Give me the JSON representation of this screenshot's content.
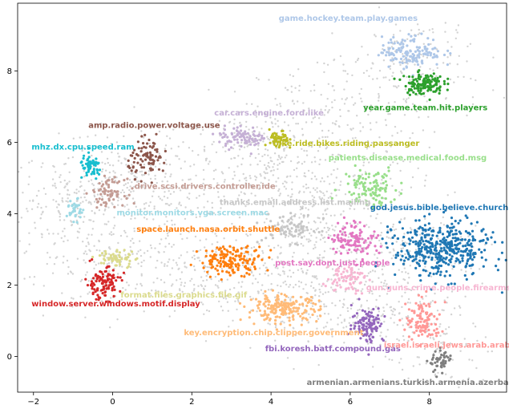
{
  "chart_data": {
    "type": "scatter",
    "title": "",
    "xlabel": "",
    "ylabel": "",
    "xlim": [
      -2.4,
      9.95
    ],
    "ylim": [
      -1.0,
      9.9
    ],
    "x_ticks": [
      -2,
      0,
      2,
      4,
      6,
      8
    ],
    "y_ticks": [
      0,
      2,
      4,
      6,
      8
    ],
    "grid": false,
    "background_color": "#d3d3d3",
    "clusters": [
      {
        "label": "game.hockey.team.play.games",
        "color": "#aec7e8",
        "center": [
          7.55,
          8.55
        ],
        "spread": [
          0.38,
          0.22
        ],
        "n": 140,
        "label_pos": [
          5.95,
          9.4
        ],
        "label_anchor": "middle"
      },
      {
        "label": "year.game.team.hit.players",
        "color": "#2ca02c",
        "center": [
          7.85,
          7.65
        ],
        "spread": [
          0.25,
          0.15
        ],
        "n": 130,
        "label_pos": [
          7.9,
          6.9
        ],
        "label_anchor": "middle"
      },
      {
        "label": "car.cars.engine.ford.like",
        "color": "#c5b0d5",
        "center": [
          3.3,
          6.15
        ],
        "spread": [
          0.32,
          0.15
        ],
        "n": 90,
        "label_pos": [
          3.95,
          6.75
        ],
        "label_anchor": "middle"
      },
      {
        "label": "bike.ride.bikes.riding.passanger",
        "color": "#bcbd22",
        "center": [
          4.2,
          6.05
        ],
        "spread": [
          0.12,
          0.14
        ],
        "n": 50,
        "label_pos": [
          5.9,
          5.9
        ],
        "label_anchor": "middle"
      },
      {
        "label": "amp.radio.power.voltage.use",
        "color": "#8c564b",
        "center": [
          0.9,
          5.55
        ],
        "spread": [
          0.25,
          0.25
        ],
        "n": 90,
        "label_pos": [
          1.05,
          6.4
        ],
        "label_anchor": "middle"
      },
      {
        "label": "mhz.dx.cpu.speed.ram",
        "color": "#17becf",
        "center": [
          -0.55,
          5.3
        ],
        "spread": [
          0.14,
          0.16
        ],
        "n": 60,
        "label_pos": [
          -0.75,
          5.8
        ],
        "label_anchor": "middle"
      },
      {
        "label": "patients.disease.medical.food.msg",
        "color": "#98df8a",
        "center": [
          6.5,
          4.75
        ],
        "spread": [
          0.35,
          0.28
        ],
        "n": 110,
        "label_pos": [
          7.45,
          5.5
        ],
        "label_anchor": "middle"
      },
      {
        "label": "drive.scsi.drivers.controller.ide",
        "color": "#c49c94",
        "center": [
          -0.1,
          4.6
        ],
        "spread": [
          0.2,
          0.18
        ],
        "n": 70,
        "label_pos": [
          0.55,
          4.7
        ],
        "label_anchor": "start"
      },
      {
        "label": "thanks.email.address.list.mailing",
        "color": "#c7c7c7",
        "center": [
          4.5,
          3.6
        ],
        "spread": [
          0.35,
          0.2
        ],
        "n": 80,
        "label_pos": [
          2.7,
          4.25
        ],
        "label_anchor": "start"
      },
      {
        "label": "god.jesus.bible.believe.church",
        "color": "#1f77b4",
        "center": [
          8.3,
          3.0
        ],
        "spread": [
          0.6,
          0.4
        ],
        "n": 420,
        "label_pos": [
          8.25,
          4.1
        ],
        "label_anchor": "middle"
      },
      {
        "label": "monitor.monitors.vga.screen.mac",
        "color": "#9edae5",
        "center": [
          -0.95,
          4.1
        ],
        "spread": [
          0.1,
          0.15
        ],
        "n": 35,
        "label_pos": [
          0.1,
          3.95
        ],
        "label_anchor": "start"
      },
      {
        "label": "space.launch.nasa.orbit.shuttle",
        "color": "#ff7f0e",
        "center": [
          3.0,
          2.7
        ],
        "spread": [
          0.4,
          0.2
        ],
        "n": 160,
        "label_pos": [
          0.6,
          3.5
        ],
        "label_anchor": "start"
      },
      {
        "label": "post.say.dont.just.people",
        "color": "#e377c2",
        "center": [
          6.1,
          3.3
        ],
        "spread": [
          0.3,
          0.25
        ],
        "n": 110,
        "label_pos": [
          4.1,
          2.55
        ],
        "label_anchor": "start"
      },
      {
        "label": "format.files.graphics.file.gif",
        "color": "#dbdb8d",
        "center": [
          0.1,
          2.75
        ],
        "spread": [
          0.25,
          0.12
        ],
        "n": 55,
        "label_pos": [
          0.2,
          1.65
        ],
        "label_anchor": "start"
      },
      {
        "label": "gun.guns.crime.people.firearms",
        "color": "#f7b6d2",
        "center": [
          5.9,
          2.2
        ],
        "spread": [
          0.25,
          0.2
        ],
        "n": 70,
        "label_pos": [
          6.4,
          1.85
        ],
        "label_anchor": "start"
      },
      {
        "label": "window.server.windows.motif.display",
        "color": "#d62728",
        "center": [
          -0.25,
          2.05
        ],
        "spread": [
          0.22,
          0.22
        ],
        "n": 110,
        "label_pos": [
          -2.05,
          1.4
        ],
        "label_anchor": "start"
      },
      {
        "label": "key.encryption.chip.clipper.government",
        "color": "#ffbb78",
        "center": [
          4.3,
          1.35
        ],
        "spread": [
          0.45,
          0.18
        ],
        "n": 200,
        "label_pos": [
          1.8,
          0.6
        ],
        "label_anchor": "start"
      },
      {
        "label": "fbi.koresh.batf.compound.gas",
        "color": "#9467bd",
        "center": [
          6.45,
          0.9
        ],
        "spread": [
          0.2,
          0.25
        ],
        "n": 110,
        "label_pos": [
          3.85,
          0.15
        ],
        "label_anchor": "start"
      },
      {
        "label": "israel.israeli.jews.arab.arabs",
        "color": "#ff9896",
        "center": [
          7.85,
          1.0
        ],
        "spread": [
          0.22,
          0.3
        ],
        "n": 110,
        "label_pos": [
          6.85,
          0.25
        ],
        "label_anchor": "start"
      },
      {
        "label": "armenian.armenians.turkish.armenia.azerbaijan",
        "color": "#7f7f7f",
        "center": [
          8.3,
          -0.15
        ],
        "spread": [
          0.15,
          0.15
        ],
        "n": 50,
        "label_pos": [
          4.9,
          -0.8
        ],
        "label_anchor": "start"
      }
    ]
  }
}
